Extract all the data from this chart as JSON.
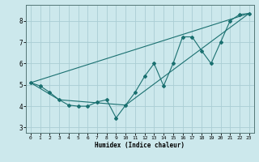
{
  "xlabel": "Humidex (Indice chaleur)",
  "background_color": "#cce8ec",
  "grid_color": "#aacdd4",
  "line_color": "#1a7070",
  "xlim": [
    -0.5,
    23.5
  ],
  "ylim": [
    2.75,
    8.75
  ],
  "xticks": [
    0,
    1,
    2,
    3,
    4,
    5,
    6,
    7,
    8,
    9,
    10,
    11,
    12,
    13,
    14,
    15,
    16,
    17,
    18,
    19,
    20,
    21,
    22,
    23
  ],
  "yticks": [
    3,
    4,
    5,
    6,
    7,
    8
  ],
  "line1_x": [
    0,
    1,
    2,
    3,
    4,
    5,
    6,
    7,
    8,
    9,
    10,
    11,
    12,
    13,
    14,
    15,
    16,
    17,
    18,
    19,
    20,
    21,
    22,
    23
  ],
  "line1_y": [
    5.1,
    4.95,
    4.65,
    4.3,
    4.05,
    4.0,
    4.0,
    4.2,
    4.3,
    3.45,
    4.05,
    4.65,
    5.4,
    6.0,
    4.95,
    6.0,
    7.25,
    7.25,
    6.6,
    6.0,
    7.0,
    8.0,
    8.3,
    8.35
  ],
  "line2_x": [
    0,
    3,
    10,
    23
  ],
  "line2_y": [
    5.1,
    4.3,
    4.05,
    8.35
  ],
  "line3_x": [
    0,
    23
  ],
  "line3_y": [
    5.1,
    8.35
  ]
}
